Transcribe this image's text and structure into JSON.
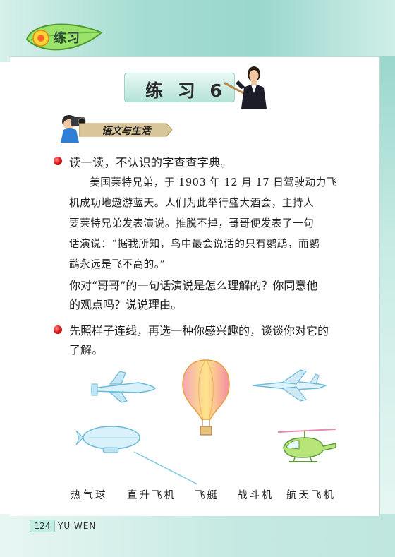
{
  "header": {
    "section_title": "练习",
    "banner_title": "练 习 6",
    "subsection_title": "语文与生活"
  },
  "exercise1": {
    "prompt": "读一读，不认识的字查查字典。",
    "passage_lines": [
      "美国莱特兄弟，于 1903 年 12 月 17 日驾驶动力飞",
      "机成功地遨游蓝天。人们为此举行盛大酒会，主持人",
      "要莱特兄弟发表演说。推脱不掉，哥哥便发表了一句",
      "话演说：“据我所知，鸟中最会说话的只有鹦鹉，而鹦",
      "鹉永远是飞不高的。”"
    ],
    "question_lines": [
      "你对“哥哥”的一句话演说是怎么理解的？你同意他",
      "的观点吗？说说理由。"
    ]
  },
  "exercise2": {
    "prompt_lines": [
      "先照样子连线，再选一种你感兴趣的，谈谈你对它的",
      "了解。"
    ],
    "labels": [
      "热气球",
      "直升飞机",
      "飞艇",
      "战斗机",
      "航天飞机"
    ],
    "images": [
      "space-shuttle",
      "hot-air-balloon",
      "fighter-jet",
      "airship",
      "helicopter"
    ]
  },
  "footer": {
    "page_number": "124",
    "subject": "YU WEN"
  },
  "colors": {
    "band": "#9ad7cc",
    "bullet": "#e02020",
    "match_line": "#7fc9e0"
  }
}
